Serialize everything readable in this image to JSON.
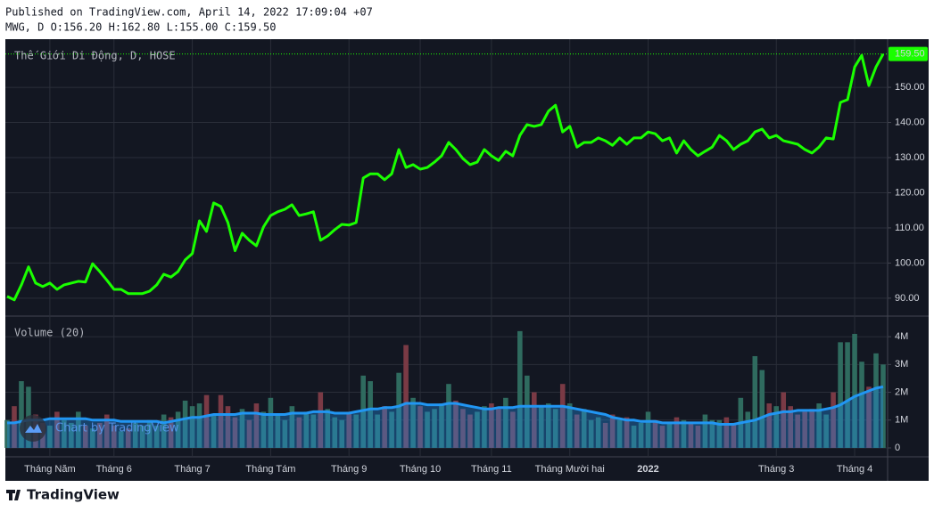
{
  "header": {
    "published": "Published on TradingView.com, April 14, 2022 17:09:04 +07",
    "symbol_info": "MWG, D O:156.20 H:162.80 L:155.00 C:159.50"
  },
  "watermark": "Chart by TradingView",
  "footer_logo": "TradingView",
  "chart_data": [
    {
      "type": "line",
      "title": "Thế Giới Di Động, D, HOSE",
      "color": "#1aff00",
      "grid": true,
      "categories": [
        null,
        null,
        null,
        null,
        null,
        null,
        "Tháng Năm",
        null,
        null,
        null,
        null,
        null,
        null,
        null,
        null,
        "Tháng 6",
        null,
        null,
        null,
        null,
        null,
        null,
        null,
        null,
        null,
        null,
        "Tháng 7",
        null,
        null,
        null,
        null,
        null,
        null,
        null,
        null,
        null,
        null,
        "Tháng Tám",
        null,
        null,
        null,
        null,
        null,
        null,
        null,
        null,
        null,
        null,
        "Tháng 9",
        null,
        null,
        null,
        null,
        null,
        null,
        null,
        null,
        null,
        "Tháng 10",
        null,
        null,
        null,
        null,
        null,
        null,
        null,
        null,
        null,
        "Tháng 11",
        null,
        null,
        null,
        null,
        null,
        null,
        null,
        null,
        null,
        null,
        "Tháng Mười hai",
        null,
        null,
        null,
        null,
        null,
        null,
        null,
        null,
        null,
        null,
        "2022",
        null,
        null,
        null,
        null,
        null,
        null,
        null,
        null,
        null,
        null,
        null,
        null,
        null,
        null,
        null,
        null,
        null,
        "Tháng 3",
        null,
        null,
        null,
        null,
        null,
        null,
        null,
        null,
        null,
        null,
        "Tháng 4",
        null,
        null,
        null,
        null
      ],
      "values": [
        90.5,
        89.5,
        93.8,
        98.9,
        94.3,
        93.3,
        94.3,
        92.5,
        93.8,
        94.3,
        94.8,
        94.6,
        99.8,
        97.6,
        95.1,
        92.5,
        92.5,
        91.3,
        91.3,
        91.3,
        92,
        93.8,
        96.8,
        96,
        97.6,
        100.9,
        102.7,
        112,
        109,
        117.1,
        116.1,
        111.5,
        103.5,
        108.5,
        106.5,
        104.9,
        110.3,
        113.5,
        114.6,
        115.3,
        116.6,
        113.5,
        114,
        114.6,
        106.5,
        107.7,
        109.5,
        111,
        110.8,
        111.5,
        124.2,
        125.4,
        125.4,
        123.7,
        125.4,
        132.3,
        127.2,
        128,
        126.7,
        127.2,
        128.7,
        130.5,
        134.3,
        132.3,
        129.7,
        128,
        128.7,
        132.3,
        130.5,
        129.2,
        131.8,
        130.5,
        136.3,
        139.4,
        138.9,
        139.4,
        143.2,
        144.9,
        137.3,
        138.9,
        133,
        134.3,
        134.3,
        135.6,
        134.8,
        133.5,
        135.6,
        133.8,
        135.6,
        135.6,
        137.3,
        136.8,
        134.8,
        135.6,
        131.3,
        134.8,
        132.3,
        130.5,
        131.8,
        133,
        136.3,
        134.8,
        132.3,
        133.8,
        134.8,
        137.3,
        138.1,
        135.6,
        136.3,
        134.8,
        134.3,
        133.8,
        132.3,
        131.3,
        133,
        135.6,
        135.3,
        145.7,
        146.5,
        155.8,
        159.1,
        150.5,
        155.8,
        159.5
      ],
      "last_label": {
        "value": 159.5,
        "label": "159.50"
      },
      "ylim": [
        84.9,
        163.7
      ],
      "yticks": [
        {
          "value": 90,
          "label": "90.00"
        },
        {
          "value": 100,
          "label": "100.00"
        },
        {
          "value": 110,
          "label": "110.00"
        },
        {
          "value": 120,
          "label": "120.00"
        },
        {
          "value": 130,
          "label": "130.00"
        },
        {
          "value": 140,
          "label": "140.00"
        },
        {
          "value": 150,
          "label": "150.00"
        }
      ]
    },
    {
      "type": "bar",
      "title": "Volume (20)",
      "colors": {
        "up": "#2f6b5f",
        "down": "#7a3a45"
      },
      "values": [
        1.0,
        1.5,
        2.4,
        2.2,
        1.2,
        0.9,
        0.8,
        1.3,
        1.0,
        0.9,
        1.3,
        0.8,
        0.7,
        0.9,
        1.2,
        0.8,
        0.6,
        0.7,
        0.9,
        0.8,
        1.0,
        0.8,
        1.2,
        1.1,
        1.3,
        1.7,
        1.5,
        1.6,
        1.9,
        1.2,
        1.9,
        1.5,
        1.1,
        1.4,
        1.0,
        1.6,
        1.3,
        1.8,
        1.2,
        1.0,
        1.5,
        1.1,
        1.3,
        1.2,
        2.0,
        1.4,
        1.1,
        1.0,
        1.3,
        1.2,
        2.6,
        2.4,
        1.2,
        1.5,
        1.3,
        2.7,
        3.7,
        1.8,
        1.5,
        1.3,
        1.4,
        1.6,
        2.3,
        1.7,
        1.4,
        1.2,
        1.3,
        1.5,
        1.6,
        1.4,
        1.8,
        1.3,
        4.2,
        2.6,
        2.0,
        1.5,
        1.6,
        1.4,
        2.3,
        1.6,
        1.2,
        1.4,
        1.0,
        1.1,
        0.9,
        1.2,
        1.0,
        1.1,
        0.8,
        0.9,
        1.3,
        1.0,
        0.8,
        0.9,
        1.1,
        1.0,
        0.9,
        0.8,
        1.2,
        1.0,
        1.0,
        1.1,
        0.9,
        1.8,
        1.3,
        3.3,
        2.8,
        1.6,
        1.5,
        2.0,
        1.5,
        1.2,
        1.3,
        1.4,
        1.6,
        1.2,
        2.0,
        3.8,
        3.8,
        4.1,
        3.1,
        2.2,
        3.4,
        3.0
      ],
      "ma": {
        "color": "#2196f3",
        "values": [
          0.9,
          0.9,
          0.95,
          1.0,
          1.0,
          1.0,
          1.05,
          1.05,
          1.05,
          1.05,
          1.05,
          1.05,
          1.0,
          1.0,
          1.0,
          1.0,
          0.95,
          0.95,
          0.95,
          0.95,
          0.95,
          0.95,
          0.9,
          0.95,
          1.0,
          1.05,
          1.1,
          1.1,
          1.15,
          1.2,
          1.2,
          1.2,
          1.2,
          1.25,
          1.25,
          1.25,
          1.2,
          1.2,
          1.2,
          1.2,
          1.25,
          1.25,
          1.25,
          1.3,
          1.3,
          1.3,
          1.25,
          1.25,
          1.25,
          1.3,
          1.35,
          1.4,
          1.4,
          1.45,
          1.45,
          1.5,
          1.6,
          1.6,
          1.6,
          1.55,
          1.55,
          1.55,
          1.6,
          1.6,
          1.55,
          1.5,
          1.45,
          1.4,
          1.4,
          1.45,
          1.45,
          1.45,
          1.5,
          1.5,
          1.5,
          1.5,
          1.5,
          1.5,
          1.5,
          1.45,
          1.4,
          1.35,
          1.3,
          1.25,
          1.2,
          1.1,
          1.05,
          1.0,
          1.0,
          0.95,
          0.95,
          0.95,
          0.9,
          0.9,
          0.9,
          0.9,
          0.9,
          0.9,
          0.9,
          0.9,
          0.85,
          0.85,
          0.85,
          0.9,
          0.95,
          1.0,
          1.1,
          1.2,
          1.25,
          1.3,
          1.3,
          1.35,
          1.35,
          1.35,
          1.35,
          1.4,
          1.45,
          1.55,
          1.7,
          1.85,
          1.95,
          2.05,
          2.15,
          2.2
        ]
      },
      "ylim": [
        -0.32,
        4.74
      ],
      "yticks": [
        0,
        {
          "value": 1,
          "label": "1M"
        },
        {
          "value": 2,
          "label": "2M"
        },
        {
          "value": 3,
          "label": "3M"
        },
        {
          "value": 4,
          "label": "4M"
        }
      ]
    }
  ]
}
